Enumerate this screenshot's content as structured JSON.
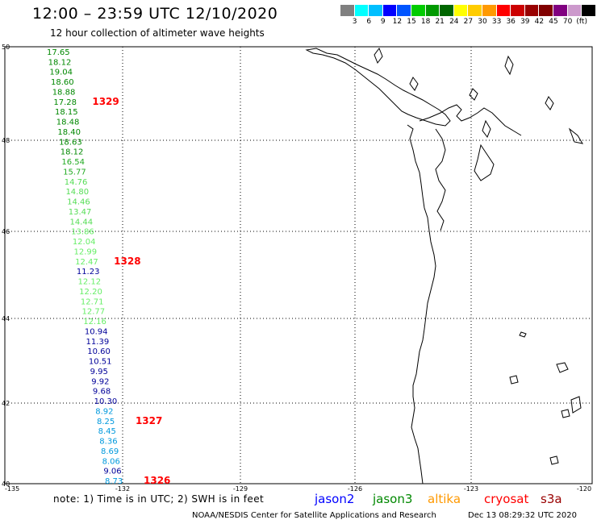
{
  "header": {
    "title": "12:00 – 23:59 UTC 12/10/2020",
    "subtitle": "12 hour collection of altimeter wave heights"
  },
  "colorbar": {
    "colors": [
      "#808080",
      "#00ffff",
      "#00bfff",
      "#0000ff",
      "#0055ff",
      "#00cc00",
      "#009900",
      "#006600",
      "#ffff00",
      "#ffcc00",
      "#ff9900",
      "#ff0000",
      "#cc0000",
      "#990000",
      "#800000",
      "#800080",
      "#cc99cc",
      "#000000"
    ],
    "labels": [
      "3",
      "6",
      "9",
      "12",
      "15",
      "18",
      "21",
      "24",
      "27",
      "30",
      "33",
      "36",
      "39",
      "42",
      "45",
      "70",
      "(ft)"
    ]
  },
  "axes": {
    "lat_ticks": [
      "50",
      "48",
      "46",
      "44",
      "42",
      "40"
    ],
    "lon_ticks": [
      "-135",
      "-132",
      "-129",
      "-126",
      "-123",
      "-120"
    ]
  },
  "track": [
    {
      "v": "17.65",
      "c": "#008800"
    },
    {
      "v": "18.12",
      "c": "#008800"
    },
    {
      "v": "19.04",
      "c": "#008800"
    },
    {
      "v": "18.60",
      "c": "#008800"
    },
    {
      "v": "18.88",
      "c": "#008800"
    },
    {
      "v": "17.28",
      "c": "#008800"
    },
    {
      "v": "18.15",
      "c": "#008800"
    },
    {
      "v": "18.48",
      "c": "#008800"
    },
    {
      "v": "18.40",
      "c": "#008800"
    },
    {
      "v": "18.63",
      "c": "#008800"
    },
    {
      "v": "18.12",
      "c": "#008800"
    },
    {
      "v": "16.54",
      "c": "#22aa22"
    },
    {
      "v": "15.77",
      "c": "#22aa22"
    },
    {
      "v": "14.76",
      "c": "#55dd55"
    },
    {
      "v": "14.80",
      "c": "#55dd55"
    },
    {
      "v": "14.46",
      "c": "#55dd55"
    },
    {
      "v": "13.47",
      "c": "#55dd55"
    },
    {
      "v": "14.44",
      "c": "#55dd55"
    },
    {
      "v": "13.86",
      "c": "#66ee66"
    },
    {
      "v": "12.04",
      "c": "#66ee66"
    },
    {
      "v": "12.99",
      "c": "#66ee66"
    },
    {
      "v": "12.47",
      "c": "#66ee66"
    },
    {
      "v": "11.23",
      "c": "#000099"
    },
    {
      "v": "12.12",
      "c": "#66ee66"
    },
    {
      "v": "12.20",
      "c": "#66ee66"
    },
    {
      "v": "12.71",
      "c": "#66ee66"
    },
    {
      "v": "12.77",
      "c": "#66ee66"
    },
    {
      "v": "12.16",
      "c": "#66ee66"
    },
    {
      "v": "10.94",
      "c": "#000099"
    },
    {
      "v": "11.39",
      "c": "#000099"
    },
    {
      "v": "10.60",
      "c": "#000099"
    },
    {
      "v": "10.51",
      "c": "#000099"
    },
    {
      "v": "9.95",
      "c": "#000099"
    },
    {
      "v": "9.92",
      "c": "#000099"
    },
    {
      "v": "9.68",
      "c": "#000099"
    },
    {
      "v": "10.30",
      "c": "#000099"
    },
    {
      "v": "8.92",
      "c": "#0099dd"
    },
    {
      "v": "8.25",
      "c": "#0099dd"
    },
    {
      "v": "8.45",
      "c": "#0099dd"
    },
    {
      "v": "8.36",
      "c": "#0099dd"
    },
    {
      "v": "8.69",
      "c": "#0099dd"
    },
    {
      "v": "8.06",
      "c": "#0099dd"
    },
    {
      "v": "9.06",
      "c": "#000099"
    },
    {
      "v": "8.73",
      "c": "#0099dd"
    }
  ],
  "passes": [
    {
      "label": "1329",
      "at": 5
    },
    {
      "label": "1328",
      "at": 21
    },
    {
      "label": "1327",
      "at": 37
    },
    {
      "label": "1326",
      "at": 43
    }
  ],
  "note": "note:  1) Time is in UTC;  2) SWH is in feet",
  "legend": [
    {
      "label": "jason2",
      "color": "#0000ff"
    },
    {
      "label": "jason3",
      "color": "#008800"
    },
    {
      "label": "altika",
      "color": "#ff9900"
    },
    {
      "label": "cryosat",
      "color": "#ff0000"
    },
    {
      "label": "s3a",
      "color": "#990000"
    }
  ],
  "footer": {
    "org": "NOAA/NESDIS Center for Satellite Applications and Research",
    "timestamp": "Dec 13 08:29:32 UTC 2020"
  }
}
